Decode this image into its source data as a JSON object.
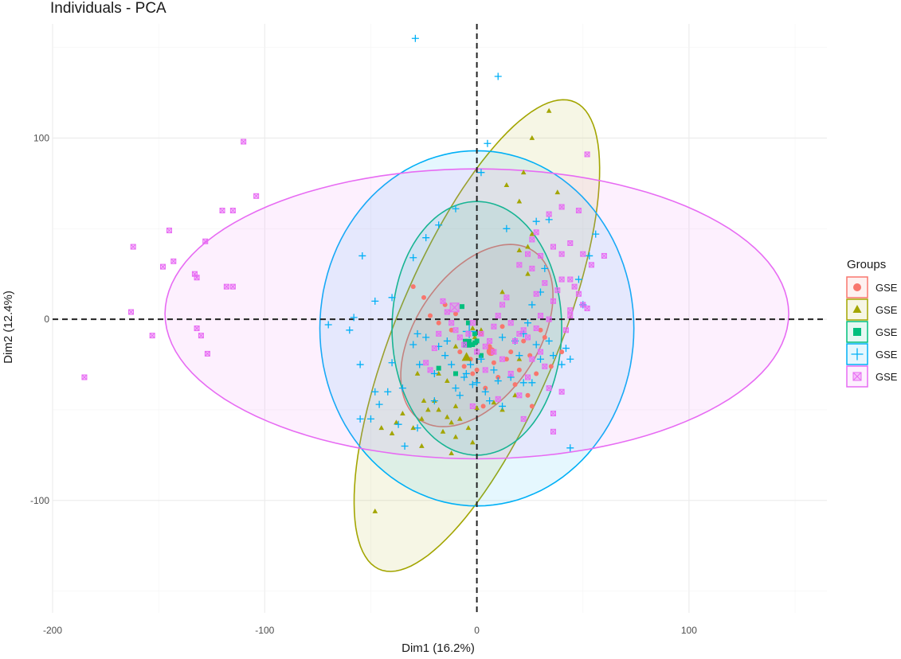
{
  "chart_data": {
    "type": "scatter",
    "title": "Individuals - PCA",
    "xlabel": "Dim1 (16.2%)",
    "ylabel": "Dim2 (12.4%)",
    "xlim": [
      -200,
      165
    ],
    "ylim": [
      -162,
      163
    ],
    "x_ticks": [
      -200,
      -100,
      0,
      100
    ],
    "x_tick_labels": [
      "-200",
      "-100",
      "0",
      "100"
    ],
    "y_ticks": [
      100,
      0,
      -100
    ],
    "y_tick_labels": [
      "100",
      "0",
      "-100"
    ],
    "grid": true,
    "reference_lines": {
      "x": 0,
      "y": 0,
      "style": "dashed"
    },
    "legend": {
      "title": "Groups",
      "position": "right"
    },
    "series": [
      {
        "name": "GSE",
        "color": "#F8766D",
        "shape": "circle",
        "ellipse": {
          "cx": 0,
          "cy": -9,
          "rx": 54,
          "ry": 30,
          "angle_deg": 64
        },
        "points": [
          [
            -30,
            18
          ],
          [
            -25,
            12
          ],
          [
            -22,
            2
          ],
          [
            -18,
            -2
          ],
          [
            -15,
            8
          ],
          [
            -12,
            -6
          ],
          [
            -10,
            3
          ],
          [
            -8,
            -18
          ],
          [
            -5,
            -12
          ],
          [
            -3,
            -22
          ],
          [
            0,
            -28
          ],
          [
            2,
            -8
          ],
          [
            4,
            -38
          ],
          [
            6,
            -15
          ],
          [
            8,
            -24
          ],
          [
            10,
            -32
          ],
          [
            12,
            -4
          ],
          [
            14,
            -22
          ],
          [
            16,
            -18
          ],
          [
            18,
            -36
          ],
          [
            20,
            -28
          ],
          [
            22,
            -12
          ],
          [
            25,
            -20
          ],
          [
            28,
            -30
          ],
          [
            30,
            -6
          ],
          [
            32,
            -10
          ],
          [
            35,
            -26
          ],
          [
            24,
            -42
          ],
          [
            26,
            -48
          ],
          [
            40,
            -18
          ],
          [
            -6,
            -26
          ],
          [
            -2,
            -30
          ],
          [
            3,
            -48
          ]
        ]
      },
      {
        "name": "GSE",
        "color": "#A3A500",
        "shape": "triangle",
        "ellipse": {
          "cx": 0,
          "cy": -9,
          "rx": 137,
          "ry": 39,
          "angle_deg": 71
        },
        "points": [
          [
            34,
            115
          ],
          [
            26,
            100
          ],
          [
            22,
            81
          ],
          [
            14,
            74
          ],
          [
            20,
            65
          ],
          [
            38,
            70
          ],
          [
            26,
            47
          ],
          [
            20,
            38
          ],
          [
            24,
            40
          ],
          [
            24,
            25
          ],
          [
            12,
            15
          ],
          [
            2,
            -6
          ],
          [
            -2,
            -5
          ],
          [
            -1,
            -10
          ],
          [
            -10,
            -15
          ],
          [
            -14,
            -34
          ],
          [
            -18,
            -30
          ],
          [
            -20,
            -45
          ],
          [
            -18,
            -50
          ],
          [
            -25,
            -45
          ],
          [
            -23,
            -50
          ],
          [
            -14,
            -54
          ],
          [
            -12,
            -57
          ],
          [
            -10,
            -48
          ],
          [
            -8,
            -55
          ],
          [
            -4,
            -60
          ],
          [
            -2,
            -68
          ],
          [
            -16,
            -62
          ],
          [
            -26,
            -55
          ],
          [
            -28,
            -30
          ],
          [
            -35,
            -52
          ],
          [
            -38,
            -57
          ],
          [
            -40,
            -63
          ],
          [
            -26,
            -70
          ],
          [
            -10,
            -65
          ],
          [
            0,
            -49
          ],
          [
            -48,
            -106
          ],
          [
            -45,
            -60
          ],
          [
            -30,
            -60
          ],
          [
            -12,
            -74
          ],
          [
            8,
            -46
          ],
          [
            12,
            -50
          ],
          [
            18,
            -42
          ],
          [
            20,
            -22
          ]
        ]
      },
      {
        "name": "GSE",
        "color": "#00BF7D",
        "shape": "square",
        "ellipse": {
          "cx": 0,
          "cy": -5,
          "rx": 70,
          "ry": 40,
          "angle_deg": 90
        },
        "points": [
          [
            -1,
            -8
          ],
          [
            -1,
            -13
          ],
          [
            -7,
            7
          ],
          [
            -18,
            -27
          ],
          [
            -10,
            -30
          ],
          [
            -4,
            -2
          ],
          [
            2,
            -20
          ],
          [
            0,
            -12
          ],
          [
            -2,
            -14
          ]
        ]
      },
      {
        "name": "GSE",
        "color": "#00B0F6",
        "shape": "plus",
        "ellipse": {
          "cx": 0,
          "cy": -5,
          "rx": 74,
          "ry": 98,
          "angle_deg": 0
        },
        "points": [
          [
            -29,
            155
          ],
          [
            10,
            134
          ],
          [
            5,
            97
          ],
          [
            2,
            81
          ],
          [
            14,
            50
          ],
          [
            28,
            54
          ],
          [
            34,
            55
          ],
          [
            48,
            22
          ],
          [
            50,
            8
          ],
          [
            56,
            47
          ],
          [
            53,
            35
          ],
          [
            -10,
            61
          ],
          [
            -18,
            52
          ],
          [
            -24,
            45
          ],
          [
            -30,
            34
          ],
          [
            -54,
            35
          ],
          [
            -40,
            12
          ],
          [
            -48,
            10
          ],
          [
            -58,
            1
          ],
          [
            -70,
            -3
          ],
          [
            -60,
            -6
          ],
          [
            -55,
            -25
          ],
          [
            -40,
            -24
          ],
          [
            -35,
            -38
          ],
          [
            -42,
            -40
          ],
          [
            -48,
            -40
          ],
          [
            -46,
            -47
          ],
          [
            -50,
            -55
          ],
          [
            -55,
            -55
          ],
          [
            -37,
            -58
          ],
          [
            -34,
            -70
          ],
          [
            -28,
            -60
          ],
          [
            -20,
            -30
          ],
          [
            -15,
            -20
          ],
          [
            -12,
            -25
          ],
          [
            -10,
            -38
          ],
          [
            -8,
            -42
          ],
          [
            -6,
            -32
          ],
          [
            -2,
            -36
          ],
          [
            4,
            -40
          ],
          [
            8,
            -28
          ],
          [
            10,
            -34
          ],
          [
            12,
            -48
          ],
          [
            16,
            -32
          ],
          [
            18,
            -12
          ],
          [
            20,
            -20
          ],
          [
            22,
            -8
          ],
          [
            24,
            -2
          ],
          [
            26,
            8
          ],
          [
            30,
            15
          ],
          [
            32,
            28
          ],
          [
            36,
            -20
          ],
          [
            40,
            -25
          ],
          [
            42,
            -16
          ],
          [
            44,
            -22
          ],
          [
            26,
            -35
          ],
          [
            28,
            -14
          ],
          [
            30,
            -22
          ],
          [
            34,
            -12
          ],
          [
            -5,
            -30
          ],
          [
            0,
            -35
          ],
          [
            2,
            -22
          ],
          [
            6,
            -45
          ],
          [
            -24,
            -10
          ],
          [
            -28,
            -8
          ],
          [
            -18,
            -15
          ],
          [
            -14,
            -12
          ],
          [
            -20,
            -45
          ],
          [
            12,
            -10
          ],
          [
            44,
            -71
          ],
          [
            22,
            -35
          ],
          [
            -3,
            -25
          ],
          [
            -30,
            -14
          ],
          [
            -27,
            -25
          ]
        ]
      },
      {
        "name": "GSE",
        "color": "#E76BF3",
        "shape": "boxcross",
        "ellipse": {
          "cx": 0,
          "cy": 3,
          "rx": 147,
          "ry": 80,
          "angle_deg": 0
        },
        "points": [
          [
            -110,
            98
          ],
          [
            -104,
            68
          ],
          [
            -120,
            60
          ],
          [
            -115,
            60
          ],
          [
            -145,
            49
          ],
          [
            -162,
            40
          ],
          [
            -143,
            32
          ],
          [
            -148,
            29
          ],
          [
            -128,
            43
          ],
          [
            -133,
            25
          ],
          [
            -132,
            23
          ],
          [
            -118,
            18
          ],
          [
            -115,
            18
          ],
          [
            -163,
            4
          ],
          [
            -153,
            -9
          ],
          [
            -132,
            -5
          ],
          [
            -130,
            -9
          ],
          [
            -127,
            -19
          ],
          [
            -185,
            -32
          ],
          [
            52,
            91
          ],
          [
            40,
            62
          ],
          [
            34,
            58
          ],
          [
            28,
            48
          ],
          [
            26,
            44
          ],
          [
            24,
            36
          ],
          [
            30,
            35
          ],
          [
            36,
            40
          ],
          [
            40,
            36
          ],
          [
            44,
            42
          ],
          [
            48,
            60
          ],
          [
            50,
            36
          ],
          [
            54,
            30
          ],
          [
            60,
            35
          ],
          [
            48,
            14
          ],
          [
            50,
            8
          ],
          [
            52,
            6
          ],
          [
            44,
            5
          ],
          [
            36,
            10
          ],
          [
            34,
            0
          ],
          [
            30,
            2
          ],
          [
            28,
            -5
          ],
          [
            24,
            -10
          ],
          [
            22,
            -6
          ],
          [
            16,
            -2
          ],
          [
            14,
            12
          ],
          [
            12,
            8
          ],
          [
            10,
            2
          ],
          [
            8,
            -4
          ],
          [
            6,
            -12
          ],
          [
            4,
            -15
          ],
          [
            2,
            -8
          ],
          [
            0,
            -18
          ],
          [
            -2,
            -2
          ],
          [
            -4,
            -8
          ],
          [
            -6,
            -14
          ],
          [
            -8,
            -10
          ],
          [
            -10,
            -6
          ],
          [
            -12,
            -2
          ],
          [
            -14,
            4
          ],
          [
            -16,
            10
          ],
          [
            -18,
            -8
          ],
          [
            -20,
            -16
          ],
          [
            -22,
            -28
          ],
          [
            -24,
            -24
          ],
          [
            18,
            -12
          ],
          [
            20,
            -8
          ],
          [
            26,
            -22
          ],
          [
            30,
            -18
          ],
          [
            32,
            -26
          ],
          [
            34,
            -38
          ],
          [
            40,
            -40
          ],
          [
            36,
            -52
          ],
          [
            36,
            -62
          ],
          [
            24,
            -32
          ],
          [
            20,
            -42
          ],
          [
            22,
            -55
          ],
          [
            16,
            -30
          ],
          [
            12,
            -22
          ],
          [
            8,
            -18
          ],
          [
            4,
            -28
          ],
          [
            10,
            -44
          ],
          [
            -2,
            -48
          ],
          [
            42,
            -6
          ],
          [
            44,
            2
          ],
          [
            46,
            18
          ],
          [
            40,
            22
          ],
          [
            32,
            20
          ],
          [
            28,
            14
          ],
          [
            26,
            28
          ],
          [
            20,
            30
          ],
          [
            44,
            22
          ],
          [
            38,
            16
          ]
        ]
      }
    ]
  }
}
